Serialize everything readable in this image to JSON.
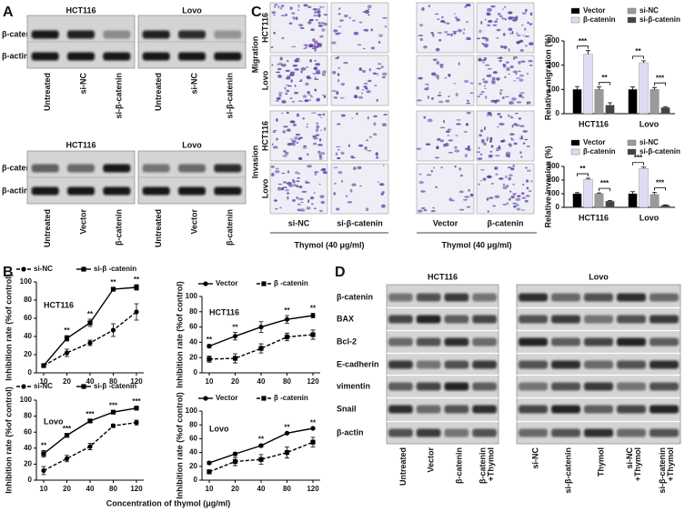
{
  "panel_labels": [
    "A",
    "B",
    "C",
    "D"
  ],
  "panel_a": {
    "blots": [
      {
        "cells": [
          "HCT116",
          "Lovo"
        ],
        "rows": [
          "β-catenin",
          "β-actin"
        ],
        "lanes": [
          "Untreated",
          "si-NC",
          "si-β-catenin"
        ]
      },
      {
        "cells": [
          "HCT116",
          "Lovo"
        ],
        "rows": [
          "β-catenin",
          "β-actin"
        ],
        "lanes": [
          "Untreated",
          "Vector",
          "β-catenin"
        ]
      }
    ]
  },
  "panel_c_images": {
    "groups": [
      "Migration",
      "Invasion"
    ],
    "cells": [
      "HCT116",
      "Lovo"
    ],
    "columns": [
      "si-NC",
      "si-β-catenin",
      "Vector",
      "β-catenin"
    ],
    "treatment": "Thymol (40 μg/ml)"
  },
  "panel_d": {
    "cells": [
      "HCT116",
      "Lovo"
    ],
    "rows": [
      "β-catenin",
      "BAX",
      "Bcl-2",
      "E-cadherin",
      "vimentin",
      "Snail",
      "β-actin"
    ],
    "lanes": [
      [
        [
          "Untreated"
        ],
        [
          "Vector"
        ],
        [
          "β-catenin"
        ],
        [
          "β-catenin",
          "+Thymol"
        ]
      ],
      [
        [
          "si-NC"
        ],
        [
          "si-β-catenin"
        ],
        [
          "Thymol"
        ],
        [
          "si-NC",
          "+Thymol"
        ],
        [
          "si-β-catenin",
          "+Thymol"
        ]
      ]
    ]
  },
  "panel_b_xlabel": "Concentration of thymol (μg/ml)",
  "chart_data": [
    {
      "type": "line",
      "title": "HCT116",
      "ylabel": "Inhibition rate (%of control)",
      "categories": [
        "10",
        "20",
        "40",
        "80",
        "120"
      ],
      "ylim": [
        0,
        100
      ],
      "yticks": [
        0,
        20,
        40,
        60,
        80,
        100
      ],
      "series": [
        {
          "name": "si-NC",
          "color": "#000000",
          "dashed": true,
          "marker": "circle",
          "values": [
            8,
            22,
            33,
            47,
            67
          ],
          "errors": [
            2,
            4,
            3,
            7,
            9
          ]
        },
        {
          "name": "si-β -catenin",
          "color": "#000000",
          "dashed": false,
          "marker": "square",
          "values": [
            8,
            38,
            55,
            92,
            94
          ],
          "errors": [
            2,
            3,
            4,
            2,
            3
          ]
        }
      ],
      "annotations": [
        null,
        "**",
        "**",
        "**",
        "**"
      ]
    },
    {
      "type": "line",
      "title": "HCT116",
      "ylabel": "Inhibition rate (%of control)",
      "categories": [
        "10",
        "20",
        "40",
        "80",
        "120"
      ],
      "ylim": [
        0,
        100
      ],
      "yticks": [
        0,
        20,
        40,
        60,
        80,
        100
      ],
      "series": [
        {
          "name": "Vector",
          "color": "#000000",
          "dashed": false,
          "marker": "circle",
          "values": [
            35,
            48,
            60,
            70,
            75
          ],
          "errors": [
            2,
            5,
            7,
            5,
            3
          ]
        },
        {
          "name": "β -catenin",
          "color": "#000000",
          "dashed": true,
          "marker": "square",
          "values": [
            18,
            19,
            32,
            47,
            50
          ],
          "errors": [
            4,
            6,
            6,
            5,
            6
          ]
        }
      ],
      "annotations": [
        "**",
        "**",
        null,
        "**",
        "**"
      ]
    },
    {
      "type": "line",
      "title": "Lovo",
      "ylabel": "Inhibition rate (%of control)",
      "categories": [
        "10",
        "20",
        "40",
        "80",
        "120"
      ],
      "ylim": [
        0,
        100
      ],
      "yticks": [
        0,
        20,
        40,
        60,
        80,
        100
      ],
      "series": [
        {
          "name": "si-NC",
          "color": "#000000",
          "dashed": true,
          "marker": "circle",
          "values": [
            12,
            27,
            42,
            68,
            72
          ],
          "errors": [
            5,
            4,
            4,
            2,
            3
          ]
        },
        {
          "name": "si-β -catenin",
          "color": "#000000",
          "dashed": false,
          "marker": "square",
          "values": [
            33,
            56,
            74,
            85,
            90
          ],
          "errors": [
            4,
            2,
            2,
            2,
            2
          ]
        }
      ],
      "annotations": [
        "**",
        "***",
        "***",
        "***",
        "***"
      ]
    },
    {
      "type": "line",
      "title": "Lovo",
      "ylabel": "Inhibition rate (%of control)",
      "categories": [
        "10",
        "20",
        "40",
        "80",
        "120"
      ],
      "ylim": [
        0,
        100
      ],
      "yticks": [
        0,
        20,
        40,
        60,
        80,
        100
      ],
      "series": [
        {
          "name": "Vector",
          "color": "#000000",
          "dashed": false,
          "marker": "circle",
          "values": [
            25,
            38,
            50,
            68,
            75
          ],
          "errors": [
            2,
            2,
            2,
            1,
            1
          ]
        },
        {
          "name": "β -catenin",
          "color": "#000000",
          "dashed": true,
          "marker": "square",
          "values": [
            12,
            27,
            30,
            40,
            55
          ],
          "errors": [
            3,
            6,
            7,
            8,
            7
          ]
        }
      ],
      "annotations": [
        null,
        null,
        "**",
        "**",
        "**"
      ]
    },
    {
      "type": "bar",
      "ylabel": "Relative migration (%)",
      "categories": [
        "HCT116",
        "Lovo"
      ],
      "ylim": [
        0,
        300
      ],
      "yticks": [
        0,
        100,
        200,
        300
      ],
      "series": [
        {
          "name": "Vector",
          "color": "#000000",
          "values": [
            100,
            100
          ],
          "errors": [
            12,
            10
          ]
        },
        {
          "name": "β-catenin",
          "color": "#dcdcf5",
          "values": [
            245,
            210
          ],
          "errors": [
            15,
            8
          ]
        },
        {
          "name": "si-NC",
          "color": "#9a9a9a",
          "values": [
            100,
            100
          ],
          "errors": [
            10,
            8
          ]
        },
        {
          "name": "si-β-catenin",
          "color": "#444444",
          "values": [
            35,
            25
          ],
          "errors": [
            10,
            4
          ]
        }
      ],
      "comparisons": [
        [
          "***",
          "**"
        ],
        [
          "**",
          "***"
        ]
      ]
    },
    {
      "type": "bar",
      "ylabel": "Relative invasion (%)",
      "categories": [
        "HCT116",
        "Lovo"
      ],
      "ylim": [
        0,
        300
      ],
      "yticks": [
        0,
        100,
        200,
        300
      ],
      "series": [
        {
          "name": "Vector",
          "color": "#000000",
          "values": [
            100,
            100
          ],
          "errors": [
            8,
            15
          ]
        },
        {
          "name": "β-catenin",
          "color": "#dcdcf5",
          "values": [
            205,
            285
          ],
          "errors": [
            8,
            10
          ]
        },
        {
          "name": "si-NC",
          "color": "#9a9a9a",
          "values": [
            100,
            95
          ],
          "errors": [
            6,
            15
          ]
        },
        {
          "name": "si-β-catenin",
          "color": "#444444",
          "values": [
            45,
            15
          ],
          "errors": [
            5,
            3
          ]
        }
      ],
      "comparisons": [
        [
          "**",
          "***"
        ],
        [
          "***",
          "***"
        ]
      ]
    }
  ]
}
